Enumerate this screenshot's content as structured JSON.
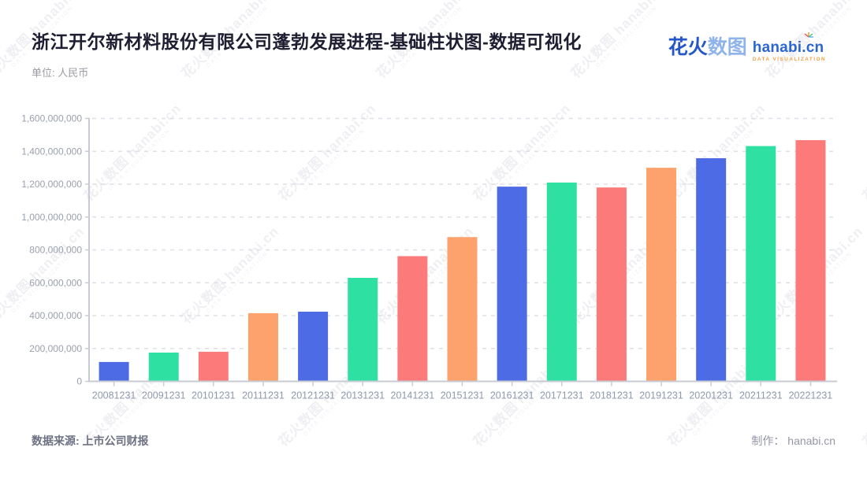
{
  "header": {
    "title": "浙江开尔新材料股份有限公司蓬勃发展进程-基础柱状图-数据可视化",
    "subtitle": "单位: 人民币",
    "logo": {
      "cn_bold": "花火",
      "cn_light": "数图",
      "en": "hanabi.cn",
      "tagline": "DATA VISUALIZATION",
      "brand_blue": "#2b67d2",
      "brand_orange": "#f0a24a"
    }
  },
  "footer": {
    "source": "数据来源: 上市公司财报",
    "credit": "制作： hanabi.cn"
  },
  "watermark": {
    "text": "花火数图 hanabi.cn",
    "tagline": "DATA VISUALIZATION"
  },
  "chart_data": {
    "type": "bar",
    "title": "浙江开尔新材料股份有限公司蓬勃发展进程",
    "unit": "人民币",
    "categories": [
      "20081231",
      "20091231",
      "20101231",
      "20111231",
      "20121231",
      "20131231",
      "20141231",
      "20151231",
      "20161231",
      "20171231",
      "20181231",
      "20191231",
      "20201231",
      "20211231",
      "20221231"
    ],
    "values": [
      118000000,
      175000000,
      180000000,
      415000000,
      424000000,
      630000000,
      762000000,
      878000000,
      1185000000,
      1210000000,
      1180000000,
      1300000000,
      1358000000,
      1432000000,
      1468000000
    ],
    "xlabel": "",
    "ylabel": "",
    "ylim": [
      0,
      1600000000
    ],
    "y_tick_step": 200000000,
    "grid": true,
    "legend_position": "none",
    "bar_color_cycle": [
      "#4E6BE6",
      "#2FE0A3",
      "#FD7A7A",
      "#FDA26C"
    ],
    "axis_color": "#c8cbd3",
    "grid_color": "#dde0e6"
  }
}
